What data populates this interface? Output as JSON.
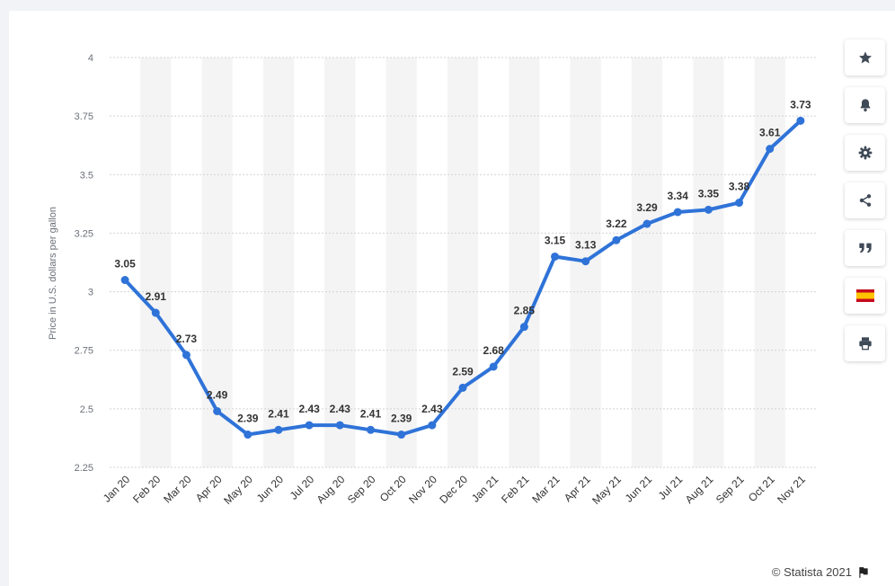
{
  "chart_data": {
    "type": "line",
    "title": "",
    "xlabel": "",
    "ylabel": "Price in U.S. dollars per gallon",
    "ylim": [
      2.25,
      4
    ],
    "yticks": [
      "4",
      "3.75",
      "3.5",
      "3.25",
      "3",
      "2.75",
      "2.5",
      "2.25"
    ],
    "ytick_values": [
      4,
      3.75,
      3.5,
      3.25,
      3,
      2.75,
      2.5,
      2.25
    ],
    "categories": [
      "Jan 20",
      "Feb 20",
      "Mar 20",
      "Apr 20",
      "May 20",
      "Jun 20",
      "Jul 20",
      "Aug 20",
      "Sep 20",
      "Oct 20",
      "Nov 20",
      "Dec 20",
      "Jan 21",
      "Feb 21",
      "Mar 21",
      "Apr 21",
      "May 21",
      "Jun 21",
      "Jul 21",
      "Aug 21",
      "Sep 21",
      "Oct 21",
      "Nov 21"
    ],
    "values": [
      3.05,
      2.91,
      2.73,
      2.49,
      2.39,
      2.41,
      2.43,
      2.43,
      2.41,
      2.39,
      2.43,
      2.59,
      2.68,
      2.85,
      3.15,
      3.13,
      3.22,
      3.29,
      3.34,
      3.35,
      3.38,
      3.61,
      3.73
    ],
    "labels": [
      "3.05",
      "2.91",
      "2.73",
      "2.49",
      "2.39",
      "2.41",
      "2.43",
      "2.43",
      "2.41",
      "2.39",
      "2.43",
      "2.59",
      "2.68",
      "2.85",
      "3.15",
      "3.13",
      "3.22",
      "3.29",
      "3.34",
      "3.35",
      "3.38",
      "3.61",
      "3.73"
    ],
    "grid": true,
    "colors": {
      "line": "#2f73d8",
      "band": "#f4f4f4",
      "grid": "#cfd3d8"
    }
  },
  "toolbar": {
    "items": [
      {
        "icon": "star-icon",
        "name": "favorite-button"
      },
      {
        "icon": "bell-icon",
        "name": "notification-button"
      },
      {
        "icon": "gear-icon",
        "name": "settings-button"
      },
      {
        "icon": "share-icon",
        "name": "share-button"
      },
      {
        "icon": "quote-icon",
        "name": "cite-button"
      },
      {
        "icon": "spain-flag-icon",
        "name": "language-button"
      },
      {
        "icon": "printer-icon",
        "name": "print-button"
      }
    ]
  },
  "footer": {
    "copyright": "© Statista 2021",
    "icon": "flag-icon"
  }
}
